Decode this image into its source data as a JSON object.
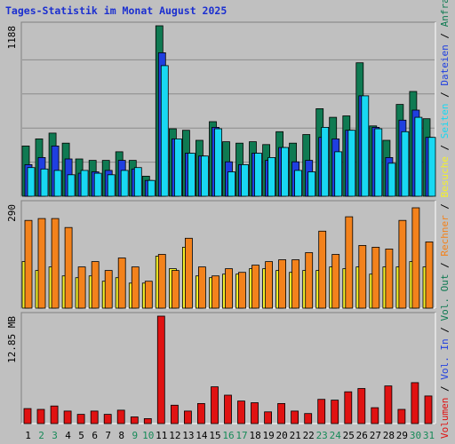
{
  "chart_data": {
    "type": "bar",
    "title": "Tages-Statistik im Monat August 2025",
    "categories": [
      "1",
      "2",
      "3",
      "4",
      "5",
      "6",
      "7",
      "8",
      "9",
      "10",
      "11",
      "12",
      "13",
      "14",
      "15",
      "16",
      "17",
      "18",
      "19",
      "20",
      "21",
      "22",
      "23",
      "24",
      "25",
      "26",
      "27",
      "28",
      "29",
      "30",
      "31"
    ],
    "weekend_days": [
      "2",
      "3",
      "9",
      "10",
      "16",
      "17",
      "23",
      "24",
      "30",
      "31"
    ],
    "colors": {
      "anfragen": "#0f7a52",
      "dateien": "#1f3fe0",
      "seiten": "#18d8f2",
      "besuche": "#f4f02a",
      "rechner": "#f3821c",
      "volumen": "#e01212",
      "title": "#1b2fd0",
      "weekend": "#168a58",
      "weekday": "#000000"
    },
    "panels": [
      {
        "id": "top",
        "scale_label": "1188",
        "ymax": 1188,
        "series": [
          {
            "name": "Anfragen",
            "key": "anfragen",
            "values": [
              350,
              400,
              440,
              370,
              260,
              250,
              250,
              310,
              250,
              140,
              1188,
              470,
              460,
              390,
              520,
              380,
              370,
              380,
              360,
              450,
              370,
              430,
              610,
              550,
              560,
              930,
              490,
              390,
              640,
              730,
              540
            ]
          },
          {
            "name": "Dateien",
            "key": "dateien",
            "values": [
              220,
              270,
              350,
              260,
              160,
              170,
              180,
              250,
              190,
              110,
              1000,
              400,
              300,
              280,
              480,
              240,
              220,
              300,
              250,
              340,
              240,
              250,
              410,
              400,
              460,
              700,
              480,
              270,
              530,
              600,
              410
            ]
          },
          {
            "name": "Seiten",
            "key": "seiten",
            "values": [
              200,
              190,
              180,
              150,
              180,
              160,
              150,
              180,
              200,
              110,
              910,
              400,
              300,
              280,
              470,
              170,
              220,
              300,
              270,
              340,
              180,
              170,
              480,
              310,
              460,
              700,
              470,
              230,
              450,
              550,
              410
            ]
          }
        ],
        "legend": [
          "Anfragen",
          "Dateien",
          "Seiten"
        ]
      },
      {
        "id": "mid",
        "scale_label": "290",
        "ymax": 290,
        "series": [
          {
            "name": "Besuche",
            "key": "besuche",
            "values": [
              130,
              105,
              115,
              90,
              85,
              90,
              75,
              85,
              70,
              70,
              145,
              110,
              170,
              90,
              85,
              95,
              95,
              110,
              110,
              105,
              100,
              105,
              105,
              115,
              110,
              115,
              95,
              115,
              115,
              130,
              115
            ]
          },
          {
            "name": "Rechner",
            "key": "rechner",
            "values": [
              245,
              250,
              250,
              225,
              115,
              130,
              105,
              140,
              115,
              75,
              150,
              105,
              195,
              115,
              90,
              110,
              100,
              120,
              130,
              135,
              135,
              155,
              215,
              150,
              255,
              175,
              170,
              165,
              245,
              280,
              185
            ]
          }
        ],
        "legend": [
          "Besuche",
          "Rechner"
        ]
      },
      {
        "id": "bot",
        "scale_label": "12.85 MB",
        "ymax": 12.85,
        "series": [
          {
            "name": "Volumen",
            "key": "volumen",
            "values": [
              1.8,
              1.7,
              2.1,
              1.5,
              1.1,
              1.5,
              1.1,
              1.6,
              0.8,
              0.6,
              12.85,
              2.2,
              1.5,
              2.4,
              4.4,
              3.4,
              2.7,
              2.5,
              1.4,
              2.4,
              1.5,
              1.2,
              2.9,
              2.8,
              3.8,
              4.2,
              1.9,
              4.5,
              1.7,
              4.9,
              3.3
            ]
          }
        ],
        "legend": [
          "Volumen",
          "Vol. In",
          "Vol. Out"
        ]
      }
    ],
    "right_legend": [
      {
        "text": "Volumen",
        "key": "volumen"
      },
      {
        "text": " / ",
        "key": "sep"
      },
      {
        "text": "Vol. In",
        "key": "dateien"
      },
      {
        "text": " / ",
        "key": "sep"
      },
      {
        "text": "Vol. Out",
        "key": "anfragen"
      },
      {
        "text": " / ",
        "key": "sep"
      },
      {
        "text": "Rechner",
        "key": "rechner"
      },
      {
        "text": " / ",
        "key": "sep"
      },
      {
        "text": "Besuche",
        "key": "besuche"
      },
      {
        "text": " / ",
        "key": "sep"
      },
      {
        "text": "Seiten",
        "key": "seiten"
      },
      {
        "text": " / ",
        "key": "sep"
      },
      {
        "text": "Dateien",
        "key": "dateien"
      },
      {
        "text": " / ",
        "key": "sep"
      },
      {
        "text": "Anfragen",
        "key": "anfragen"
      }
    ]
  }
}
